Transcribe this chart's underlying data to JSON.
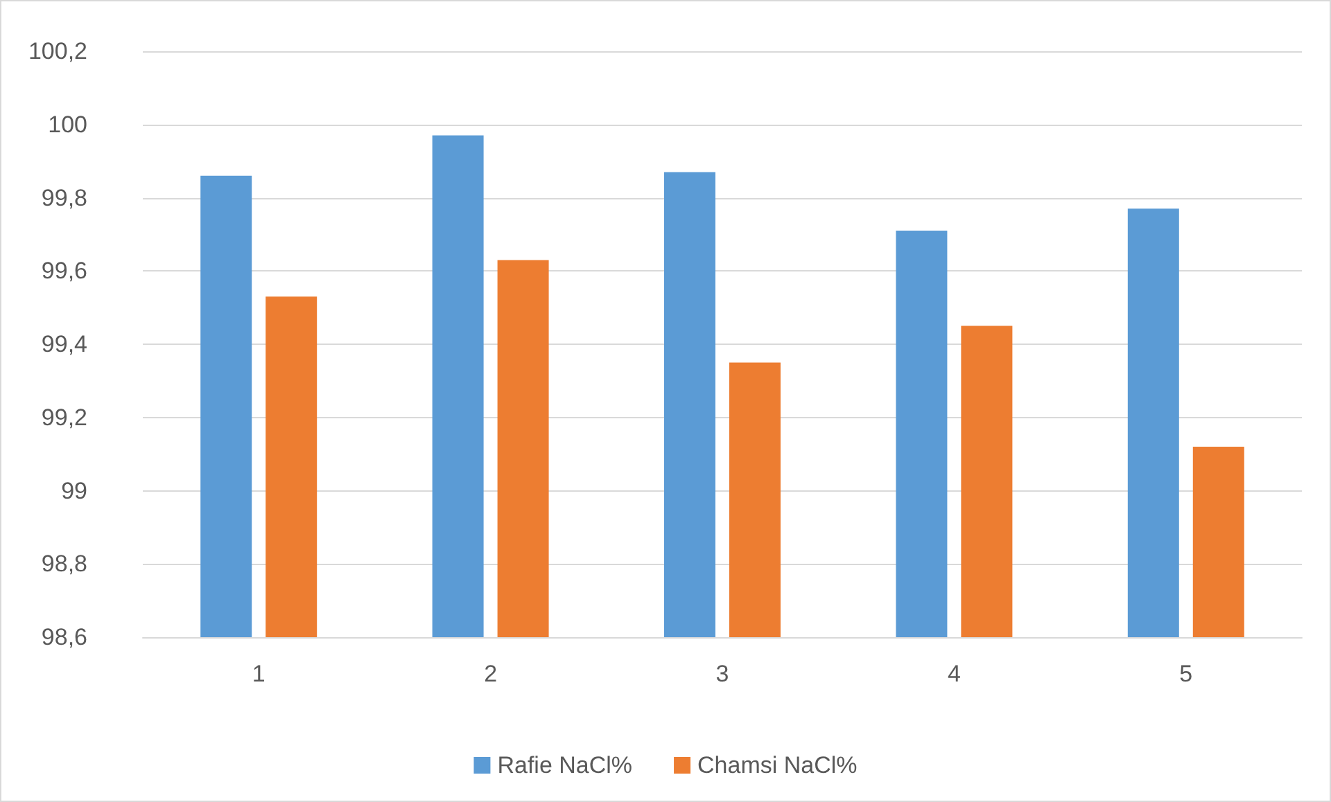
{
  "chart_data": {
    "type": "bar",
    "categories": [
      "1",
      "2",
      "3",
      "4",
      "5"
    ],
    "series": [
      {
        "name": "Rafie NaCl%",
        "color": "#5b9bd5",
        "values": [
          99.86,
          99.97,
          99.87,
          99.71,
          99.77
        ]
      },
      {
        "name": "Chamsi NaCl%",
        "color": "#ed7d31",
        "values": [
          99.53,
          99.63,
          99.35,
          99.45,
          99.12
        ]
      }
    ],
    "ylim": [
      98.6,
      100.2
    ],
    "yticks": [
      {
        "value": 98.6,
        "label": "98,6"
      },
      {
        "value": 98.8,
        "label": "98,8"
      },
      {
        "value": 99,
        "label": "99"
      },
      {
        "value": 99.2,
        "label": "99,2"
      },
      {
        "value": 99.4,
        "label": "99,4"
      },
      {
        "value": 99.6,
        "label": "99,6"
      },
      {
        "value": 99.8,
        "label": "99,8"
      },
      {
        "value": 100,
        "label": "100"
      },
      {
        "value": 100.2,
        "label": "100,2"
      }
    ],
    "grid": "y",
    "legend": "bottom"
  }
}
